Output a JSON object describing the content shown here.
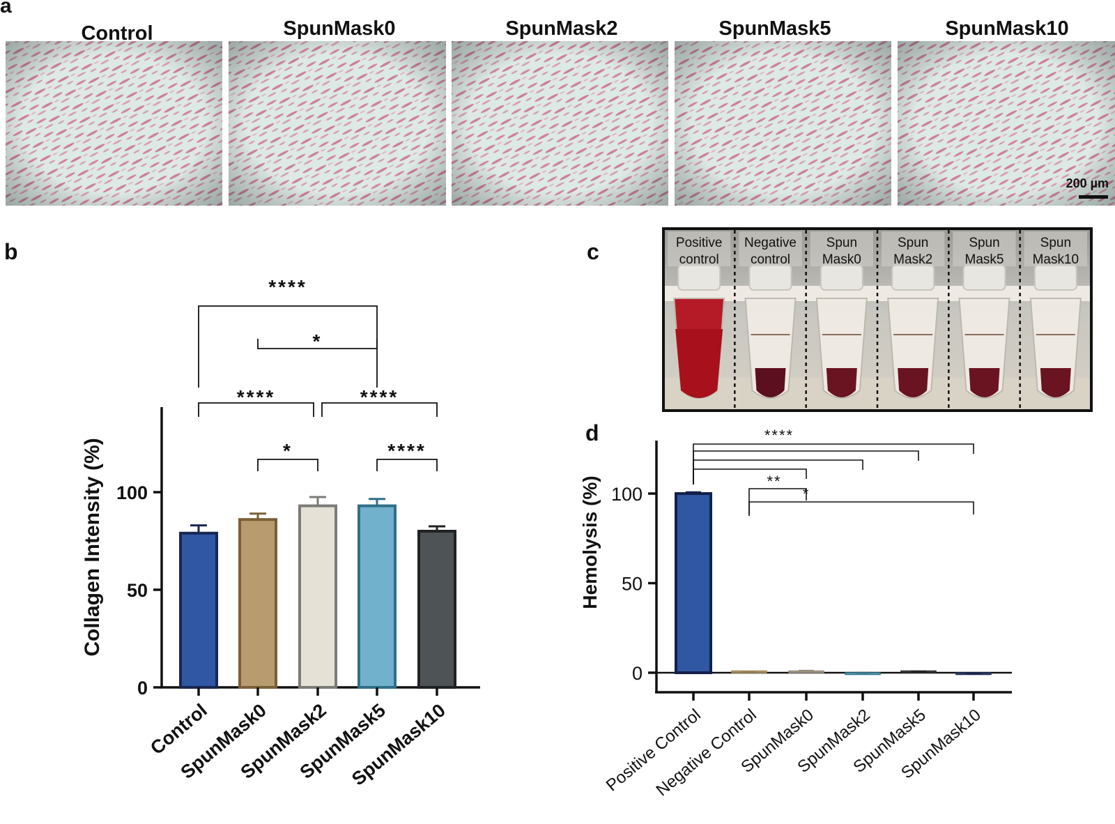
{
  "panel_letters": {
    "a": "a",
    "b": "b",
    "c": "c",
    "d": "d"
  },
  "panel_a": {
    "labels": [
      "Control",
      "SpunMask0",
      "SpunMask2",
      "SpunMask5",
      "SpunMask10"
    ],
    "scale_bar": "200 µm"
  },
  "panel_c": {
    "tube_labels": [
      [
        "Positive",
        "control"
      ],
      [
        "Negative",
        "control"
      ],
      [
        "Spun",
        "Mask0"
      ],
      [
        "Spun",
        "Mask2"
      ],
      [
        "Spun",
        "Mask5"
      ],
      [
        "Spun",
        "Mask10"
      ]
    ],
    "fill_colors": [
      "#b3121e",
      "#f0ebe4",
      "#f0ebe4",
      "#f0ebe4",
      "#f0ebe4",
      "#f0ebe4"
    ]
  },
  "chart_data": [
    {
      "panel": "b",
      "type": "bar",
      "ylabel": "Collagen Intensity (%)",
      "categories": [
        "Control",
        "SpunMask0",
        "SpunMask2",
        "SpunMask5",
        "SpunMask10"
      ],
      "values": [
        79,
        86,
        93,
        93,
        80
      ],
      "errors": [
        4,
        3,
        4.5,
        3.5,
        2.5
      ],
      "colors": [
        "#2f57a4",
        "#b89b6e",
        "#e6e1d6",
        "#72b1cc",
        "#4e5355"
      ],
      "edge_colors": [
        "#1a2750",
        "#7a6038",
        "#7d7b77",
        "#2f6f87",
        "#202224"
      ],
      "ylim": [
        0,
        135
      ],
      "yticks": [
        0,
        50,
        100
      ],
      "significance": [
        {
          "from": "Control",
          "to": "SpunMask5",
          "label": "****"
        },
        {
          "from": "SpunMask0",
          "to": "SpunMask5",
          "label": "*"
        },
        {
          "from": "Control",
          "to": "SpunMask2",
          "label": "****"
        },
        {
          "from": "SpunMask2",
          "to": "SpunMask10",
          "label": "****"
        },
        {
          "from": "SpunMask0",
          "to": "SpunMask2",
          "label": "*"
        },
        {
          "from": "SpunMask5",
          "to": "SpunMask10",
          "label": "****"
        }
      ]
    },
    {
      "panel": "d",
      "type": "bar",
      "ylabel": "Hemolysis (%)",
      "categories": [
        "Positive Control",
        "Negative Control",
        "SpunMask0",
        "SpunMask2",
        "SpunMask5",
        "SpunMask10"
      ],
      "values": [
        100,
        0.1,
        0.8,
        -0.3,
        0.5,
        -0.6
      ],
      "errors": [
        0.8,
        0.2,
        0.3,
        0.3,
        0.3,
        0.3
      ],
      "colors": [
        "#2f57a4",
        "#b89b6e",
        "#b89b6e",
        "#72b1cc",
        "#4e5355",
        "#3c4a6a"
      ],
      "edge_colors": [
        "#14204a",
        "#9a8558",
        "#8d8a86",
        "#2f6f87",
        "#202224",
        "#1a2750"
      ],
      "ylim": [
        -10,
        130
      ],
      "yticks": [
        0,
        50,
        100
      ],
      "significance": [
        {
          "from": "Positive Control",
          "to": "SpunMask10",
          "label": "****"
        },
        {
          "from": "Positive Control",
          "to": "SpunMask5",
          "label": ""
        },
        {
          "from": "Positive Control",
          "to": "SpunMask2",
          "label": ""
        },
        {
          "from": "Positive Control",
          "to": "SpunMask0",
          "label": ""
        },
        {
          "from": "Negative Control",
          "to": "SpunMask0",
          "label": "**"
        },
        {
          "from": "Negative Control",
          "to": "SpunMask10",
          "label": "*"
        }
      ]
    }
  ]
}
